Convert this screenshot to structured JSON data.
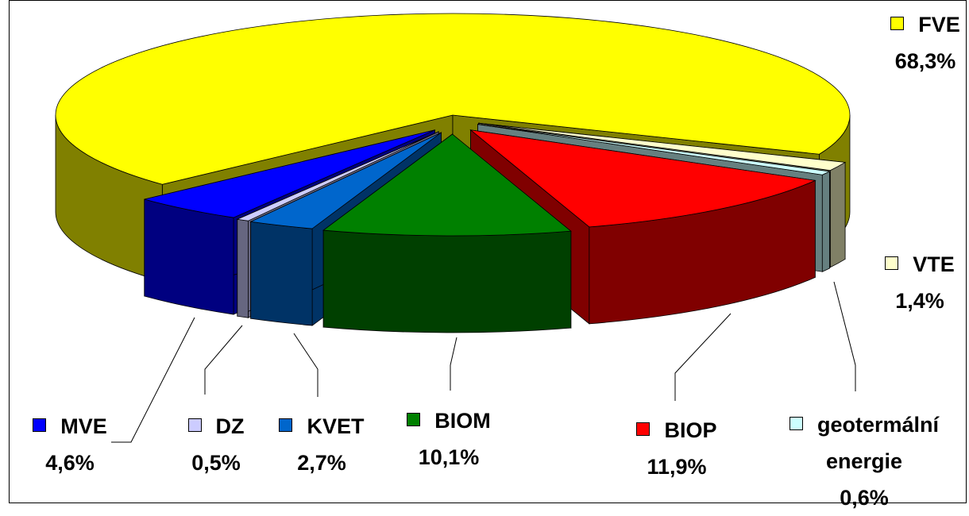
{
  "chart_data": {
    "type": "pie3d",
    "categories": [
      "FVE",
      "VTE",
      "geotermální energie",
      "BIOP",
      "BIOM",
      "KVET",
      "DZ",
      "MVE"
    ],
    "values": [
      68.3,
      1.4,
      0.6,
      11.9,
      10.1,
      2.7,
      0.5,
      4.6
    ],
    "value_labels": [
      "68,3%",
      "1,4%",
      "0,6%",
      "11,9%",
      "10,1%",
      "2,7%",
      "0,5%",
      "4,6%"
    ],
    "colors": [
      "#ffff00",
      "#ffffcc",
      "#ccffff",
      "#ff0000",
      "#008000",
      "#0066cc",
      "#ccccff",
      "#0000ff"
    ]
  }
}
